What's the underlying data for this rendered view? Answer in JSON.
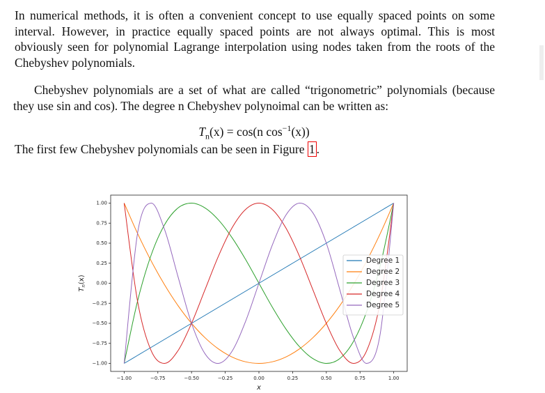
{
  "paragraphs": [
    "In numerical methods, it is often a convenient concept to use equally spaced points on some interval. However, in practice equally spaced points are not always optimal. This is most obviously seen for polynomial Lagrange interpolation using nodes taken from the roots of the Chebyshev polynomials.",
    "Chebyshev polynomials are a set of what are called “trigonometric” polynomials (because they use sin and cos). The degree n Chebyshev polynoimal can be written as:"
  ],
  "formula": {
    "lhs": "T",
    "sub": "n",
    "mid": "(x) = cos(n cos",
    "sup": "−1",
    "end": "(x))"
  },
  "figure_sentence": {
    "text": "The first few Chebyshev polynomials can be seen in Figure",
    "ref": "1",
    "end": "."
  },
  "chart_data": {
    "type": "line",
    "xlabel": "x",
    "ylabel": {
      "base": "T",
      "sub": "n",
      "rest": "(x)"
    },
    "x": [
      -1,
      -0.9,
      -0.8,
      -0.7,
      -0.6,
      -0.5,
      -0.4,
      -0.3,
      -0.2,
      -0.1,
      0,
      0.1,
      0.2,
      0.3,
      0.4,
      0.5,
      0.6,
      0.7,
      0.8,
      0.9,
      1
    ],
    "series": [
      {
        "name": "Degree 1",
        "color": "#1f77b4",
        "values": [
          -1,
          -0.9,
          -0.8,
          -0.7,
          -0.6,
          -0.5,
          -0.4,
          -0.3,
          -0.2,
          -0.1,
          0,
          0.1,
          0.2,
          0.3,
          0.4,
          0.5,
          0.6,
          0.7,
          0.8,
          0.9,
          1
        ]
      },
      {
        "name": "Degree 2",
        "color": "#ff7f0e",
        "values": [
          1,
          0.62,
          0.28,
          -0.02,
          -0.28,
          -0.5,
          -0.68,
          -0.82,
          -0.92,
          -0.98,
          -1,
          -0.98,
          -0.92,
          -0.82,
          -0.68,
          -0.5,
          -0.28,
          -0.02,
          0.28,
          0.62,
          1
        ]
      },
      {
        "name": "Degree 3",
        "color": "#2ca02c",
        "values": [
          -1,
          -0.22,
          0.35,
          0.73,
          0.94,
          1,
          0.94,
          0.79,
          0.57,
          0.3,
          0,
          -0.3,
          -0.57,
          -0.79,
          -0.94,
          -1,
          -0.94,
          -0.73,
          -0.35,
          0.22,
          1
        ]
      },
      {
        "name": "Degree 4",
        "color": "#d62728",
        "values": [
          1,
          -0.23,
          -0.84,
          -1,
          -0.84,
          -0.5,
          -0.08,
          0.34,
          0.69,
          0.92,
          1,
          0.92,
          0.69,
          0.34,
          -0.08,
          -0.5,
          -0.84,
          -1,
          -0.84,
          -0.23,
          1
        ]
      },
      {
        "name": "Degree 5",
        "color": "#9467bd",
        "values": [
          -1,
          0.63,
          1,
          0.67,
          0.08,
          -0.5,
          -0.88,
          -1,
          -0.85,
          -0.48,
          0,
          0.48,
          0.85,
          1,
          0.88,
          0.5,
          -0.08,
          -0.67,
          -1,
          -0.63,
          1
        ]
      }
    ],
    "xlim": [
      -1.1,
      1.1
    ],
    "ylim": [
      -1.1,
      1.1
    ],
    "xticks": [
      {
        "value": -1,
        "label": "−1.00"
      },
      {
        "value": -0.75,
        "label": "−0.75"
      },
      {
        "value": -0.5,
        "label": "−0.50"
      },
      {
        "value": -0.25,
        "label": "−0.25"
      },
      {
        "value": 0,
        "label": "0.00"
      },
      {
        "value": 0.25,
        "label": "0.25"
      },
      {
        "value": 0.5,
        "label": "0.50"
      },
      {
        "value": 0.75,
        "label": "0.75"
      },
      {
        "value": 1,
        "label": "1.00"
      }
    ],
    "yticks": [
      {
        "value": -1,
        "label": "−1.00"
      },
      {
        "value": -0.75,
        "label": "−0.75"
      },
      {
        "value": -0.5,
        "label": "−0.50"
      },
      {
        "value": -0.25,
        "label": "−0.25"
      },
      {
        "value": 0,
        "label": "0.00"
      },
      {
        "value": 0.25,
        "label": "0.25"
      },
      {
        "value": 0.5,
        "label": "0.50"
      },
      {
        "value": 0.75,
        "label": "0.75"
      },
      {
        "value": 1,
        "label": "1.00"
      }
    ],
    "legend": "center right",
    "grid": false
  }
}
